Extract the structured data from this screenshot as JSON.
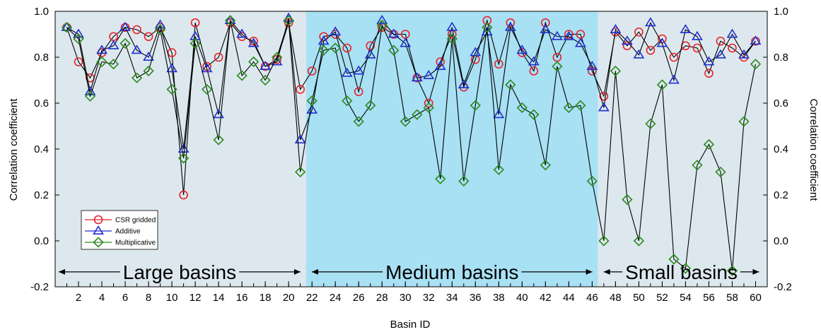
{
  "chart_data": {
    "type": "line",
    "xlabel": "Basin ID",
    "ylabel": "Correlation coefficient",
    "ylabel_right": "Correlation coefficient",
    "xlim": [
      0,
      61
    ],
    "ylim": [
      -0.2,
      1.0
    ],
    "x_ticks": [
      2,
      4,
      6,
      8,
      10,
      12,
      14,
      16,
      18,
      20,
      22,
      24,
      26,
      28,
      30,
      32,
      34,
      36,
      38,
      40,
      42,
      44,
      46,
      48,
      50,
      52,
      54,
      56,
      58,
      60
    ],
    "y_ticks": [
      -0.2,
      0.0,
      0.2,
      0.4,
      0.6,
      0.8,
      1.0
    ],
    "y_tick_labels": [
      "-0.2",
      "0.0",
      "0.2",
      "0.4",
      "0.6",
      "0.8",
      "1.0"
    ],
    "grid": false,
    "legend_position": "bottom-left",
    "regions": [
      {
        "label": "Large basins",
        "x_start": 0,
        "x_end": 21.5,
        "color": "#dce8ee"
      },
      {
        "label": "Medium basins",
        "x_start": 21.5,
        "x_end": 46.5,
        "color": "#a8e0f4"
      },
      {
        "label": "Small basins",
        "x_start": 46.5,
        "x_end": 61,
        "color": "#dce8ee"
      }
    ],
    "x": [
      1,
      2,
      3,
      4,
      5,
      6,
      7,
      8,
      9,
      10,
      11,
      12,
      13,
      14,
      15,
      16,
      17,
      18,
      19,
      20,
      21,
      22,
      23,
      24,
      25,
      26,
      27,
      28,
      29,
      30,
      31,
      32,
      33,
      34,
      35,
      36,
      37,
      38,
      39,
      40,
      41,
      42,
      43,
      44,
      45,
      46,
      47,
      48,
      49,
      50,
      51,
      52,
      53,
      54,
      55,
      56,
      57,
      58,
      59,
      60
    ],
    "series": [
      {
        "name": "CSR gridded",
        "color": "#e8212a",
        "marker": "circle",
        "values": [
          0.93,
          0.78,
          0.71,
          0.82,
          0.89,
          0.93,
          0.92,
          0.89,
          0.93,
          0.82,
          0.2,
          0.95,
          0.76,
          0.8,
          0.95,
          0.89,
          0.87,
          0.76,
          0.79,
          0.95,
          0.66,
          0.74,
          0.89,
          0.9,
          0.84,
          0.65,
          0.85,
          0.93,
          0.9,
          0.9,
          0.71,
          0.6,
          0.78,
          0.9,
          0.67,
          0.79,
          0.96,
          0.77,
          0.95,
          0.82,
          0.74,
          0.95,
          0.8,
          0.9,
          0.9,
          0.74,
          0.63,
          0.91,
          0.85,
          0.91,
          0.83,
          0.88,
          0.8,
          0.85,
          0.84,
          0.73,
          0.87,
          0.84,
          0.8,
          0.87
        ]
      },
      {
        "name": "Additive",
        "color": "#1f2fcf",
        "marker": "triangle",
        "values": [
          0.93,
          0.9,
          0.65,
          0.83,
          0.85,
          0.93,
          0.83,
          0.8,
          0.94,
          0.75,
          0.4,
          0.89,
          0.75,
          0.55,
          0.96,
          0.9,
          0.86,
          0.76,
          0.78,
          0.97,
          0.44,
          0.57,
          0.87,
          0.91,
          0.73,
          0.74,
          0.81,
          0.96,
          0.9,
          0.86,
          0.71,
          0.72,
          0.76,
          0.93,
          0.68,
          0.82,
          0.91,
          0.55,
          0.93,
          0.83,
          0.78,
          0.92,
          0.89,
          0.89,
          0.86,
          0.76,
          0.58,
          0.92,
          0.87,
          0.81,
          0.95,
          0.86,
          0.7,
          0.92,
          0.89,
          0.78,
          0.81,
          0.9,
          0.81,
          0.87
        ]
      },
      {
        "name": "Multiplicative",
        "color": "#2e8b1f",
        "marker": "diamond",
        "values": [
          0.93,
          0.88,
          0.63,
          0.78,
          0.77,
          0.86,
          0.71,
          0.74,
          0.92,
          0.66,
          0.36,
          0.86,
          0.66,
          0.44,
          0.96,
          0.72,
          0.78,
          0.7,
          0.8,
          0.96,
          0.3,
          0.61,
          0.83,
          0.84,
          0.61,
          0.52,
          0.59,
          0.94,
          0.83,
          0.52,
          0.55,
          0.58,
          0.27,
          0.88,
          0.26,
          0.59,
          0.93,
          0.31,
          0.68,
          0.58,
          0.55,
          0.33,
          0.76,
          0.58,
          0.59,
          0.26,
          0.0,
          0.74,
          0.18,
          0.0,
          0.51,
          0.68,
          -0.08,
          -0.12,
          0.33,
          0.42,
          0.3,
          -0.13,
          0.52,
          0.77
        ]
      }
    ]
  }
}
